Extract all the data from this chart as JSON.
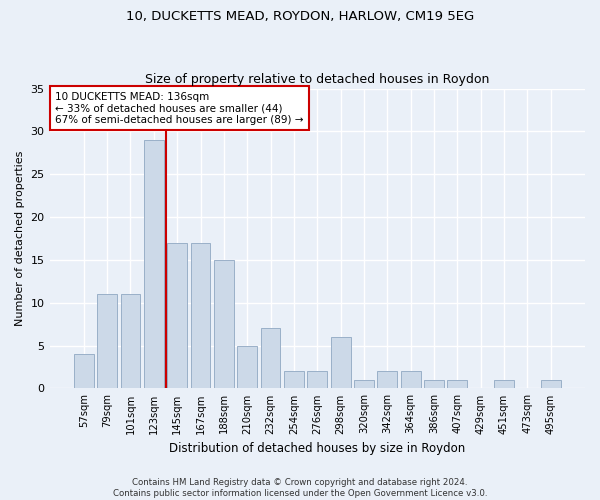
{
  "title1": "10, DUCKETTS MEAD, ROYDON, HARLOW, CM19 5EG",
  "title2": "Size of property relative to detached houses in Roydon",
  "xlabel": "Distribution of detached houses by size in Roydon",
  "ylabel": "Number of detached properties",
  "bar_values": [
    4,
    11,
    11,
    29,
    17,
    17,
    15,
    5,
    7,
    2,
    2,
    6,
    1,
    2,
    2,
    1,
    1,
    0,
    1,
    0,
    1
  ],
  "categories": [
    "57sqm",
    "79sqm",
    "101sqm",
    "123sqm",
    "145sqm",
    "167sqm",
    "188sqm",
    "210sqm",
    "232sqm",
    "254sqm",
    "276sqm",
    "298sqm",
    "320sqm",
    "342sqm",
    "364sqm",
    "386sqm",
    "407sqm",
    "429sqm",
    "451sqm",
    "473sqm",
    "495sqm"
  ],
  "bar_color": "#ccd9e8",
  "bar_edgecolor": "#9ab0c8",
  "vline_x": 3.5,
  "vline_color": "#cc0000",
  "annotation_text": "10 DUCKETTS MEAD: 136sqm\n← 33% of detached houses are smaller (44)\n67% of semi-detached houses are larger (89) →",
  "annotation_box_facecolor": "white",
  "annotation_box_edgecolor": "#cc0000",
  "ylim": [
    0,
    35
  ],
  "yticks": [
    0,
    5,
    10,
    15,
    20,
    25,
    30,
    35
  ],
  "background_color": "#eaf0f8",
  "grid_color": "#ffffff",
  "footnote": "Contains HM Land Registry data © Crown copyright and database right 2024.\nContains public sector information licensed under the Open Government Licence v3.0."
}
